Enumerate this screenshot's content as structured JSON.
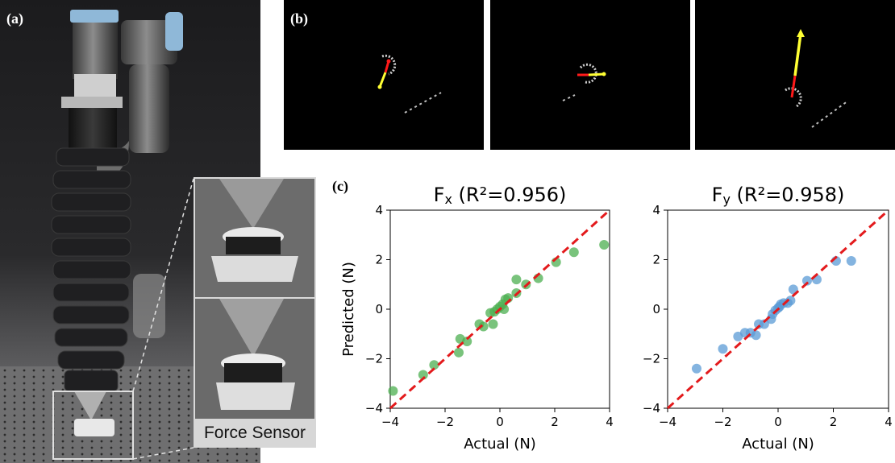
{
  "panel_labels": {
    "a": "(a)",
    "b": "(b)",
    "c": "(c)"
  },
  "photo": {
    "inset_caption": "Force Sensor"
  },
  "camera_frames": [
    {
      "description": "marker-frame-1"
    },
    {
      "description": "marker-frame-2"
    },
    {
      "description": "marker-frame-3"
    }
  ],
  "colors": {
    "fx_points": "#4caf50",
    "fy_points": "#5b9bd5",
    "identity_line": "#e31a1c",
    "arrow_red": "#ff1a1a",
    "arrow_yellow": "#ffff33"
  },
  "chart_data": [
    {
      "type": "scatter",
      "title_main": "F",
      "title_sub": "x",
      "title_rest": "  (R²=0.956)",
      "xlabel": "Actual (N)",
      "ylabel": "Predicted (N)",
      "xlim": [
        -4,
        4
      ],
      "ylim": [
        -4,
        4
      ],
      "xticks": [
        -4,
        -2,
        0,
        2,
        4
      ],
      "yticks": [
        -4,
        -2,
        0,
        2,
        4
      ],
      "xtick_labels": [
        "−4",
        "−2",
        "0",
        "2",
        "4"
      ],
      "ytick_labels": [
        "−4",
        "−2",
        "0",
        "2",
        "4"
      ],
      "reference_line": "y = x",
      "points": [
        [
          -3.9,
          -3.3
        ],
        [
          -2.8,
          -2.65
        ],
        [
          -2.4,
          -2.25
        ],
        [
          -1.5,
          -1.75
        ],
        [
          -1.45,
          -1.2
        ],
        [
          -1.2,
          -1.3
        ],
        [
          -0.75,
          -0.6
        ],
        [
          -0.6,
          -0.7
        ],
        [
          -0.35,
          -0.15
        ],
        [
          -0.25,
          -0.6
        ],
        [
          -0.2,
          -0.1
        ],
        [
          -0.1,
          0.0
        ],
        [
          0.0,
          0.1
        ],
        [
          0.1,
          0.2
        ],
        [
          0.15,
          0.0
        ],
        [
          0.2,
          0.4
        ],
        [
          0.3,
          0.45
        ],
        [
          0.6,
          0.65
        ],
        [
          0.6,
          1.2
        ],
        [
          0.95,
          1.0
        ],
        [
          1.4,
          1.25
        ],
        [
          2.05,
          1.9
        ],
        [
          2.7,
          2.3
        ],
        [
          3.8,
          2.6
        ]
      ]
    },
    {
      "type": "scatter",
      "title_main": "F",
      "title_sub": "y",
      "title_rest": "  (R²=0.958)",
      "xlabel": "Actual (N)",
      "ylabel": "",
      "xlim": [
        -4,
        4
      ],
      "ylim": [
        -4,
        4
      ],
      "xticks": [
        -4,
        -2,
        0,
        2,
        4
      ],
      "yticks": [
        -4,
        -2,
        0,
        2,
        4
      ],
      "xtick_labels": [
        "−4",
        "−2",
        "0",
        "2",
        "4"
      ],
      "ytick_labels": [
        "−4",
        "−2",
        "0",
        "2",
        "4"
      ],
      "reference_line": "y = x",
      "points": [
        [
          -2.95,
          -2.4
        ],
        [
          -2.0,
          -1.6
        ],
        [
          -1.45,
          -1.1
        ],
        [
          -1.2,
          -0.95
        ],
        [
          -1.0,
          -0.95
        ],
        [
          -0.8,
          -1.05
        ],
        [
          -0.7,
          -0.6
        ],
        [
          -0.5,
          -0.6
        ],
        [
          -0.25,
          -0.4
        ],
        [
          -0.2,
          -0.2
        ],
        [
          -0.1,
          -0.05
        ],
        [
          0.0,
          0.05
        ],
        [
          0.05,
          0.1
        ],
        [
          0.1,
          0.2
        ],
        [
          0.2,
          0.25
        ],
        [
          0.35,
          0.25
        ],
        [
          0.45,
          0.35
        ],
        [
          0.55,
          0.8
        ],
        [
          1.05,
          1.15
        ],
        [
          1.4,
          1.2
        ],
        [
          2.1,
          1.95
        ],
        [
          2.65,
          1.95
        ]
      ]
    }
  ]
}
